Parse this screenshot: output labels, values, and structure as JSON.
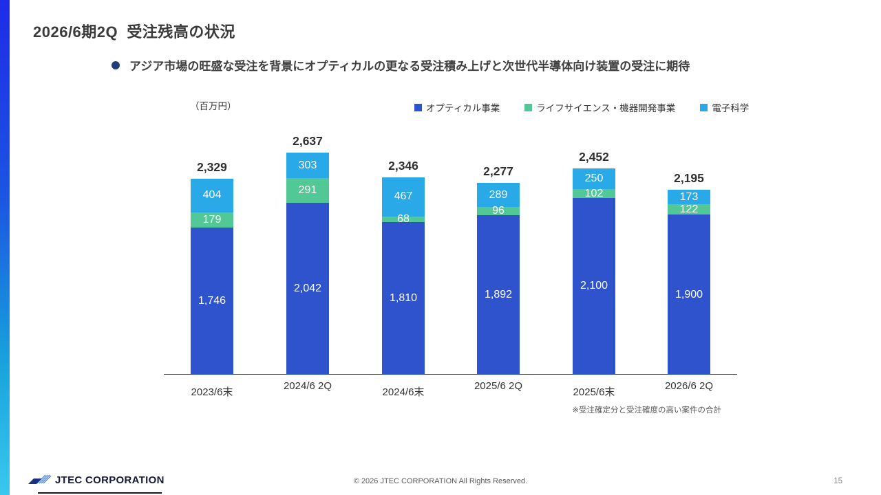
{
  "page": {
    "title": "2026/6期2Q  受注残高の状況",
    "bullet": "アジア市場の旺盛な受注を背景にオプティカルの更なる受注積み上げと次世代半導体向け装置の受注に期待",
    "page_number": "15"
  },
  "chart": {
    "unit_label": "（百万円）",
    "note": "※受注確定分と受注確度の高い案件の合計"
  },
  "chart_data": {
    "type": "bar",
    "stacked": true,
    "title": "",
    "unit": "百万円",
    "categories": [
      "2023/6末",
      "2024/6 2Q",
      "2024/6末",
      "2025/6 2Q",
      "2025/6末",
      "2026/6 2Q"
    ],
    "series": [
      {
        "key": "optical",
        "name": "オプティカル事業",
        "color": "#2e53cd",
        "values": [
          1746,
          2042,
          1810,
          1892,
          2100,
          1900
        ]
      },
      {
        "key": "lifescience",
        "name": "ライフサイエンス・機器開発事業",
        "color": "#52c897",
        "values": [
          179,
          291,
          68,
          96,
          102,
          122
        ]
      },
      {
        "key": "electronics",
        "name": "電子科学",
        "color": "#29a9e8",
        "values": [
          404,
          303,
          467,
          289,
          250,
          173
        ]
      }
    ],
    "totals": [
      2329,
      2637,
      2346,
      2277,
      2452,
      2195
    ],
    "ylim": [
      0,
      2800
    ],
    "grid": false,
    "legend_position": "top",
    "value_labels": "inside-white, totals above bars"
  },
  "footer": {
    "logo_text": "JTEC CORPORATION",
    "copyright": "© 2026 JTEC CORPORATION All Rights Reserved."
  },
  "colors": {
    "accent_bar_top": "#1f2be8",
    "accent_bar_bottom": "#3ac8ee",
    "bullet_dot": "#1f3b78",
    "title_text": "#3a3a3a"
  }
}
